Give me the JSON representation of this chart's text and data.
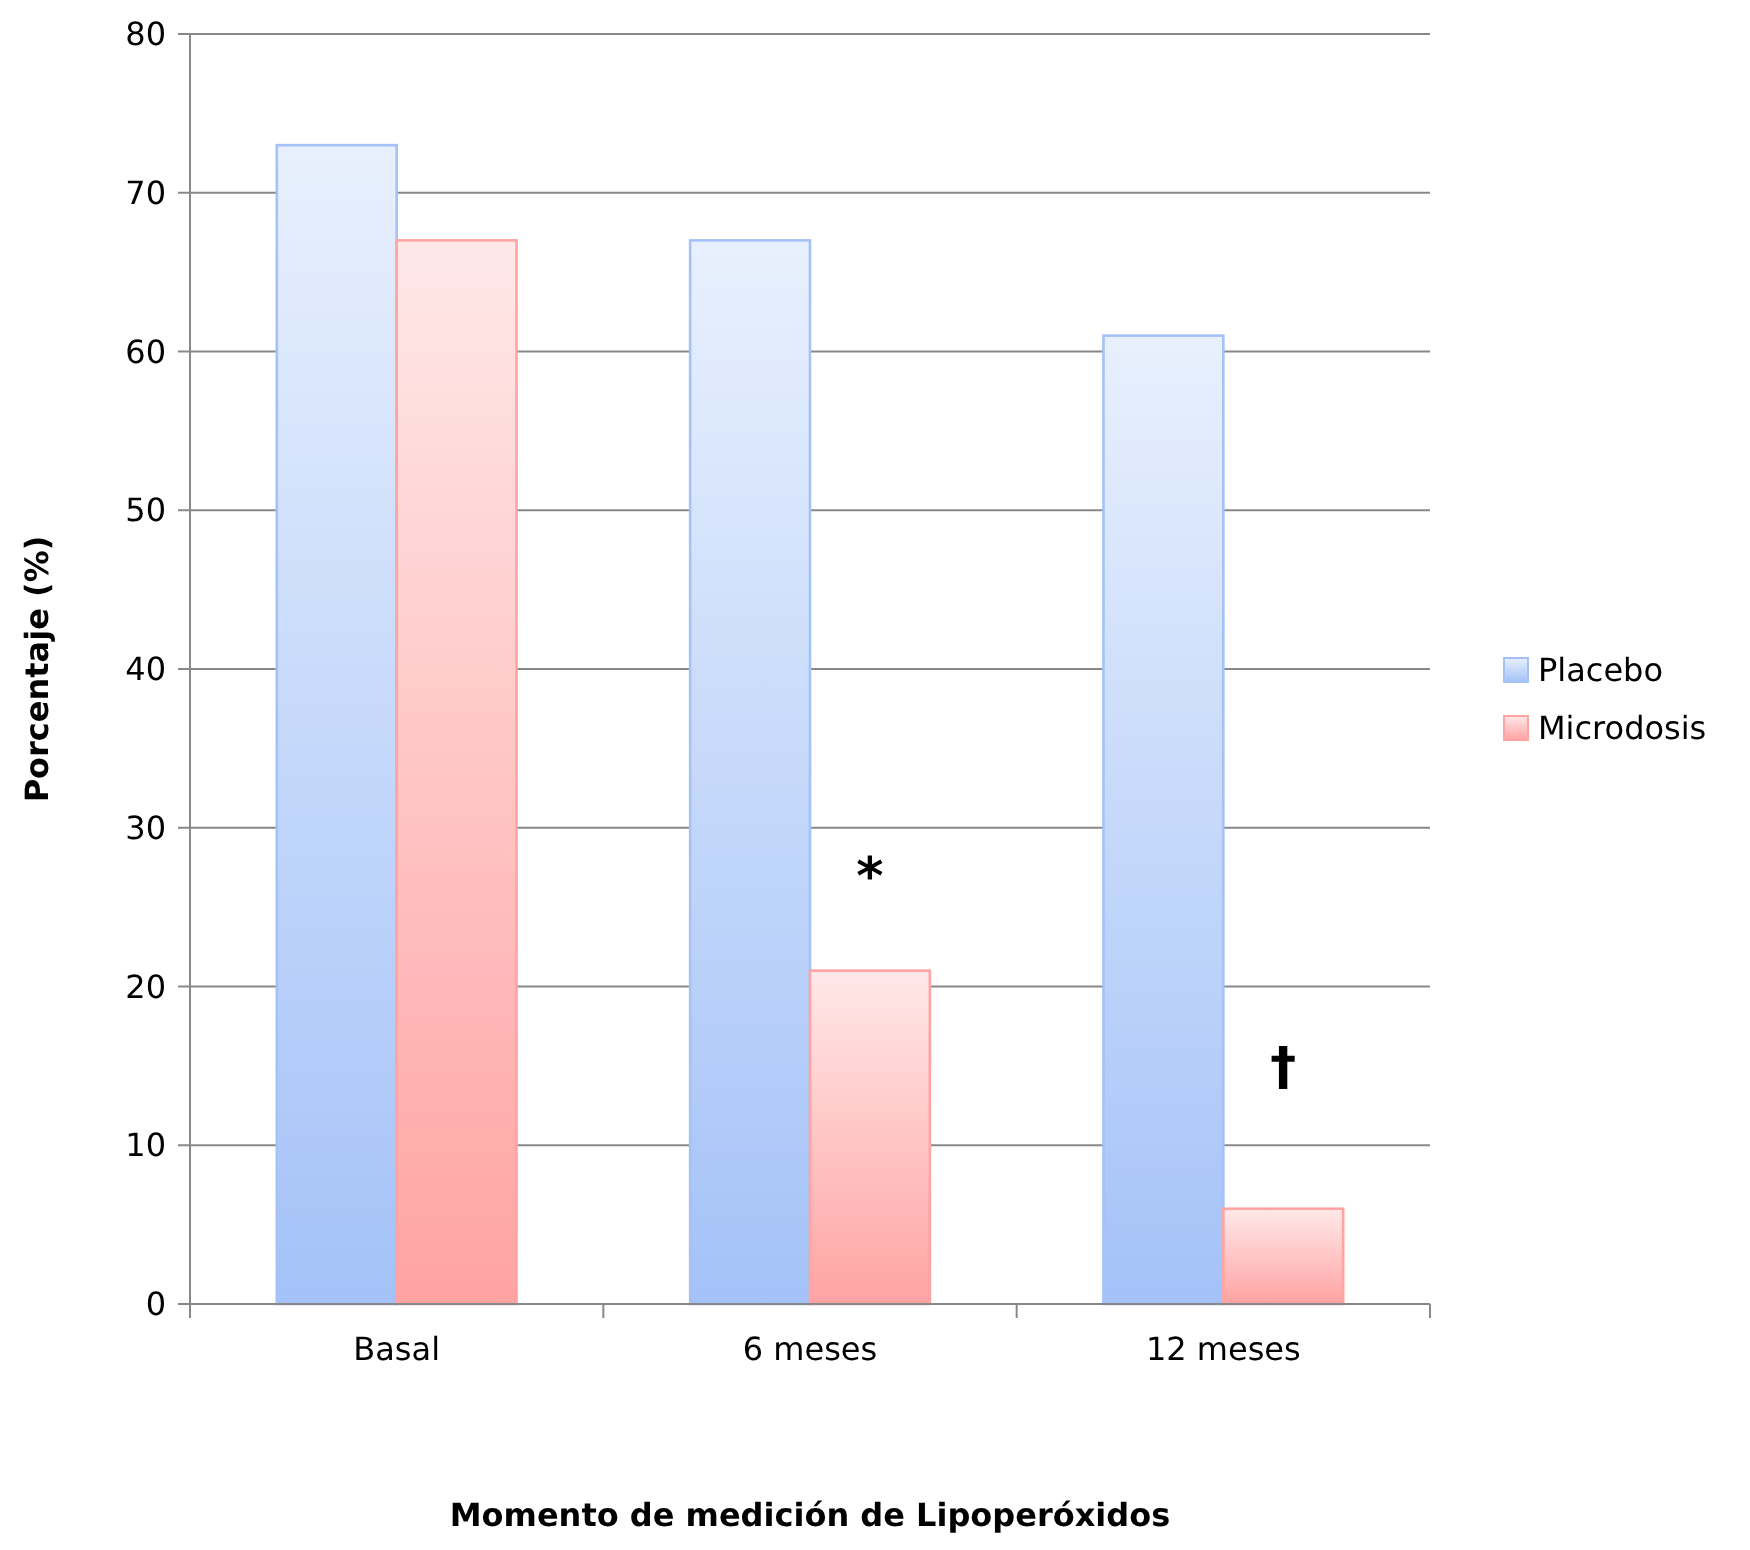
{
  "chart_data": {
    "type": "bar",
    "xlabel": "Momento de medición de Lipoperóxidos",
    "ylabel": "Porcentaje (%)",
    "categories": [
      "Basal",
      "6 meses",
      "12 meses"
    ],
    "series": [
      {
        "name": "Placebo",
        "color": "#a4c2f8",
        "values": [
          73,
          67,
          61
        ]
      },
      {
        "name": "Microdosis",
        "color": "#ffa3a3",
        "values": [
          67,
          21,
          6
        ]
      }
    ],
    "ylim": [
      0,
      80
    ],
    "yticks": [
      0,
      10,
      20,
      30,
      40,
      50,
      60,
      70,
      80
    ],
    "grid": "y",
    "legend": "right",
    "annotations": [
      {
        "text": "*",
        "x": "6 meses",
        "y": 27
      },
      {
        "text": "†",
        "x": "12 meses",
        "y": 15
      }
    ]
  }
}
